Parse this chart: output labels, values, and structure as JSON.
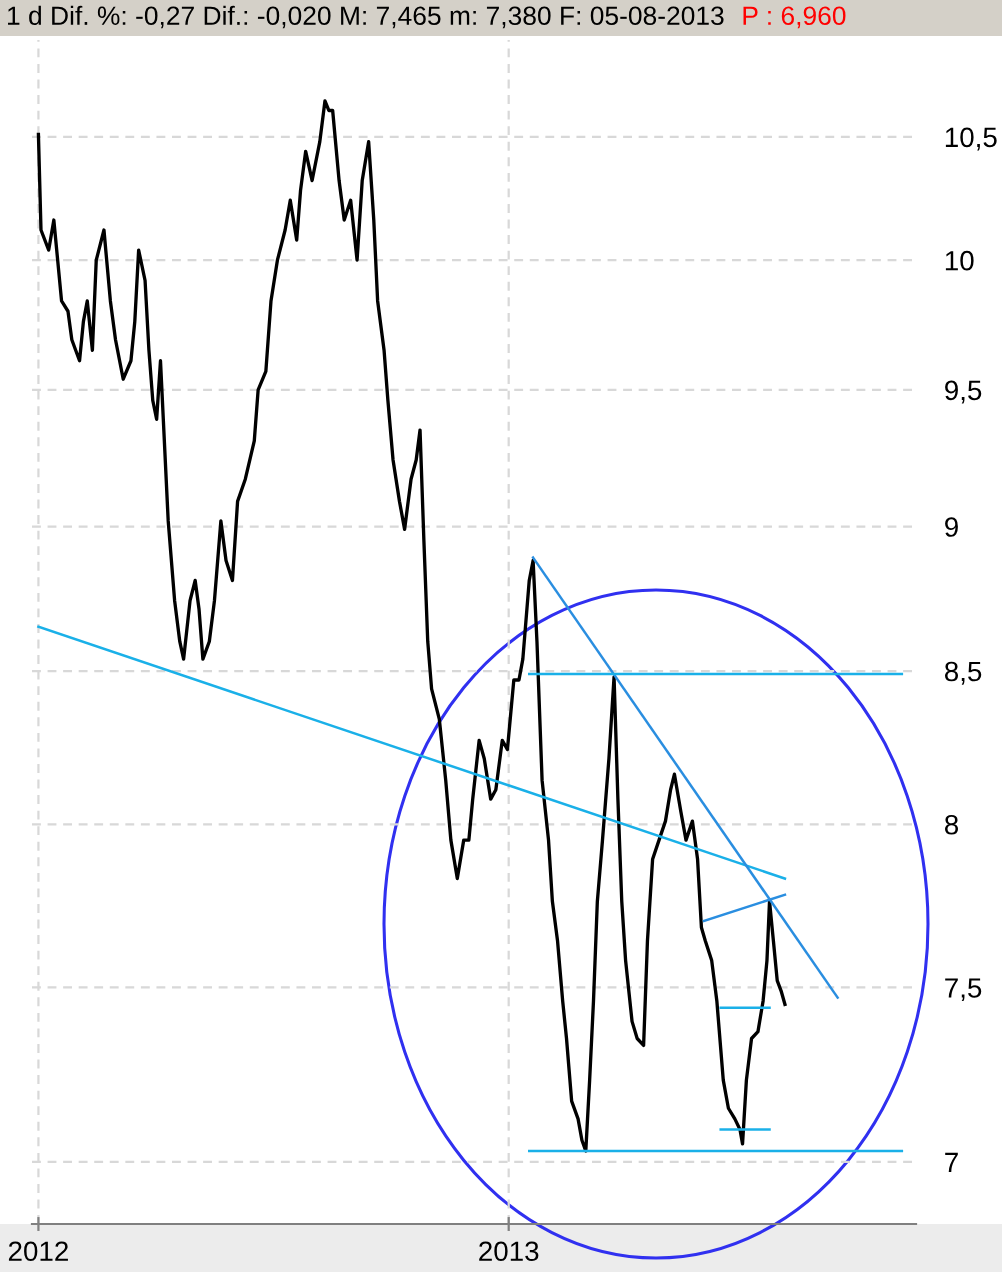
{
  "chart_data": {
    "type": "line",
    "title": "1 d Dif. %: -0,27 Dif.: -0,020 M: 7,465 m: 7,380 F: 05-08-2013",
    "annotations": [
      "P : 6,960"
    ],
    "log": "y",
    "grid": true,
    "line_style": "solid",
    "xlim": [
      "2011-12-27",
      "2013-11-14"
    ],
    "xticks": [
      {
        "value": "2012-01-01",
        "label": "2012"
      },
      {
        "value": "2013-01-01",
        "label": "2013"
      }
    ],
    "ylim": [
      6.83,
      10.91
    ],
    "yticks": [
      {
        "value": 7,
        "label": "7"
      },
      {
        "value": 7.5,
        "label": "7,5"
      },
      {
        "value": 8,
        "label": "8"
      },
      {
        "value": 8.5,
        "label": "8,5"
      },
      {
        "value": 9,
        "label": "9"
      },
      {
        "value": 9.5,
        "label": "9,5"
      },
      {
        "value": 10,
        "label": "10"
      },
      {
        "value": 10.5,
        "label": "10,5"
      }
    ],
    "series": [
      {
        "color": "#000000",
        "x": [
          "2012-01-01",
          "2012-01-03",
          "2012-01-09",
          "2012-01-13",
          "2012-01-19",
          "2012-01-24",
          "2012-01-27",
          "2012-02-02",
          "2012-02-05",
          "2012-02-08",
          "2012-02-12",
          "2012-02-15",
          "2012-02-21",
          "2012-02-26",
          "2012-03-01",
          "2012-03-07",
          "2012-03-13",
          "2012-03-16",
          "2012-03-19",
          "2012-03-24",
          "2012-03-27",
          "2012-03-30",
          "2012-04-02",
          "2012-04-05",
          "2012-04-11",
          "2012-04-16",
          "2012-04-20",
          "2012-04-23",
          "2012-04-28",
          "2012-05-02",
          "2012-05-05",
          "2012-05-08",
          "2012-05-13",
          "2012-05-17",
          "2012-05-22",
          "2012-05-26",
          "2012-05-31",
          "2012-06-04",
          "2012-06-10",
          "2012-06-17",
          "2012-06-20",
          "2012-06-26",
          "2012-06-30",
          "2012-07-05",
          "2012-07-11",
          "2012-07-15",
          "2012-07-20",
          "2012-07-23",
          "2012-07-27",
          "2012-08-01",
          "2012-08-07",
          "2012-08-11",
          "2012-08-14",
          "2012-08-17",
          "2012-08-22",
          "2012-08-26",
          "2012-08-31",
          "2012-09-05",
          "2012-09-09",
          "2012-09-14",
          "2012-09-18",
          "2012-09-21",
          "2012-09-26",
          "2012-09-29",
          "2012-10-03",
          "2012-10-08",
          "2012-10-12",
          "2012-10-17",
          "2012-10-21",
          "2012-10-24",
          "2012-10-27",
          "2012-10-30",
          "2012-11-02",
          "2012-11-08",
          "2012-11-13",
          "2012-11-17",
          "2012-11-22",
          "2012-11-27",
          "2012-12-01",
          "2012-12-04",
          "2012-12-09",
          "2012-12-13",
          "2012-12-18",
          "2012-12-22",
          "2012-12-27",
          "2012-12-31",
          "2013-01-05",
          "2013-01-09",
          "2013-01-12",
          "2013-01-17",
          "2013-01-20",
          "2013-01-23",
          "2013-01-27",
          "2013-02-01",
          "2013-02-04",
          "2013-02-08",
          "2013-02-12",
          "2013-02-15",
          "2013-02-19",
          "2013-02-24",
          "2013-02-27",
          "2013-03-02",
          "2013-03-05",
          "2013-03-08",
          "2013-03-11",
          "2013-03-15",
          "2013-03-20",
          "2013-03-24",
          "2013-03-27",
          "2013-03-30",
          "2013-04-02",
          "2013-04-07",
          "2013-04-11",
          "2013-04-16",
          "2013-04-19",
          "2013-04-23",
          "2013-04-28",
          "2013-05-03",
          "2013-05-07",
          "2013-05-10",
          "2013-05-15",
          "2013-05-19",
          "2013-05-24",
          "2013-05-28",
          "2013-05-31",
          "2013-06-03",
          "2013-06-08",
          "2013-06-12",
          "2013-06-17",
          "2013-06-21",
          "2013-06-26",
          "2013-06-30",
          "2013-07-02",
          "2013-07-05",
          "2013-07-09",
          "2013-07-14",
          "2013-07-18",
          "2013-07-21",
          "2013-07-23",
          "2013-07-26",
          "2013-07-29",
          "2013-08-01",
          "2013-08-04"
        ],
        "values": [
          10.51,
          10.12,
          10.04,
          10.16,
          9.84,
          9.8,
          9.69,
          9.61,
          9.76,
          9.84,
          9.65,
          10.0,
          10.12,
          9.84,
          9.69,
          9.54,
          9.61,
          9.76,
          10.04,
          9.92,
          9.65,
          9.46,
          9.39,
          9.61,
          9.02,
          8.74,
          8.6,
          8.54,
          8.74,
          8.81,
          8.71,
          8.54,
          8.6,
          8.74,
          9.02,
          8.88,
          8.81,
          9.09,
          9.17,
          9.31,
          9.5,
          9.57,
          9.84,
          10.0,
          10.12,
          10.24,
          10.08,
          10.28,
          10.44,
          10.32,
          10.48,
          10.65,
          10.61,
          10.61,
          10.32,
          10.16,
          10.24,
          10.0,
          10.32,
          10.48,
          10.16,
          9.84,
          9.65,
          9.46,
          9.24,
          9.09,
          8.99,
          9.17,
          9.24,
          9.35,
          8.95,
          8.6,
          8.44,
          8.34,
          8.14,
          7.95,
          7.83,
          7.95,
          7.95,
          8.08,
          8.27,
          8.21,
          8.08,
          8.11,
          8.27,
          8.24,
          8.47,
          8.47,
          8.54,
          8.81,
          8.88,
          8.6,
          8.14,
          7.95,
          7.76,
          7.64,
          7.46,
          7.35,
          7.17,
          7.12,
          7.06,
          7.03,
          7.23,
          7.46,
          7.76,
          7.95,
          8.21,
          8.48,
          8.08,
          7.76,
          7.58,
          7.4,
          7.35,
          7.33,
          7.64,
          7.89,
          7.95,
          8.01,
          8.11,
          8.16,
          8.04,
          7.95,
          8.01,
          7.89,
          7.68,
          7.64,
          7.58,
          7.46,
          7.23,
          7.15,
          7.12,
          7.09,
          7.05,
          7.23,
          7.35,
          7.37,
          7.46,
          7.58,
          7.76,
          7.64,
          7.52,
          7.49,
          7.45
        ]
      },
      {
        "color": "#1ab0e8",
        "x": [
          "2012-01-01",
          "2013-08-04"
        ],
        "values": [
          8.65,
          7.83
        ]
      },
      {
        "color": "#2a8ee0",
        "x": [
          "2013-01-20",
          "2013-09-14"
        ],
        "values": [
          8.89,
          7.47
        ]
      },
      {
        "color": "#1ab0e8",
        "x": [
          "2013-01-17",
          "2013-11-03"
        ],
        "values": [
          8.49,
          8.49
        ]
      },
      {
        "color": "#1ab0e8",
        "x": [
          "2013-01-17",
          "2013-11-03"
        ],
        "values": [
          7.03,
          7.03
        ]
      },
      {
        "color": "#2a8ee0",
        "x": [
          "2013-06-02",
          "2013-08-04"
        ],
        "values": [
          7.7,
          7.78
        ]
      },
      {
        "color": "#1ab0e8",
        "x": [
          "2013-06-15",
          "2013-07-23"
        ],
        "values": [
          7.44,
          7.44
        ]
      },
      {
        "color": "#1ab0e8",
        "x": [
          "2013-06-15",
          "2013-07-23"
        ],
        "values": [
          7.09,
          7.09
        ]
      }
    ]
  }
}
